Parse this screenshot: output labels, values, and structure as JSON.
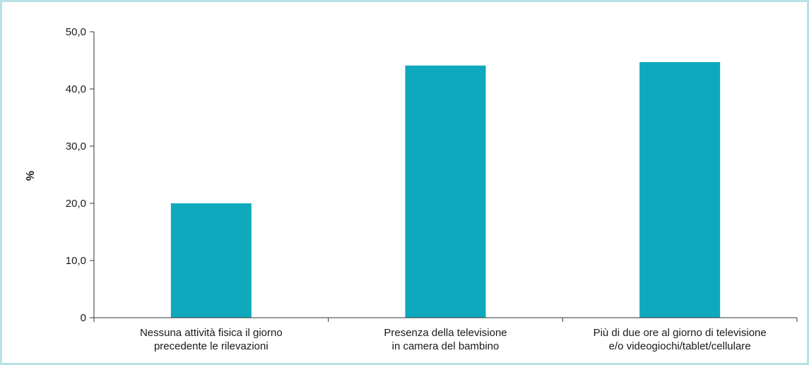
{
  "chart_data": {
    "type": "bar",
    "ylabel": "%",
    "xlabel": "",
    "ylim": [
      0,
      50
    ],
    "yticks": [
      0,
      10,
      20,
      30,
      40,
      50
    ],
    "ytick_labels": [
      "0",
      "10,0",
      "20,0",
      "30,0",
      "40,0",
      "50,0"
    ],
    "categories": [
      [
        "Nessuna attività fisica il giorno",
        "precedente le rilevazioni"
      ],
      [
        "Presenza della televisione",
        "in camera del bambino"
      ],
      [
        "Più di due ore al giorno di televisione",
        "e/o videogiochi/tablet/cellulare"
      ]
    ],
    "values": [
      20.0,
      44.1,
      44.7
    ],
    "bar_color": "#0fa9bd",
    "grid": false,
    "legend": "none"
  },
  "colors": {
    "frame_border": "#b9e1e6",
    "bar": "#0fa9bd"
  }
}
